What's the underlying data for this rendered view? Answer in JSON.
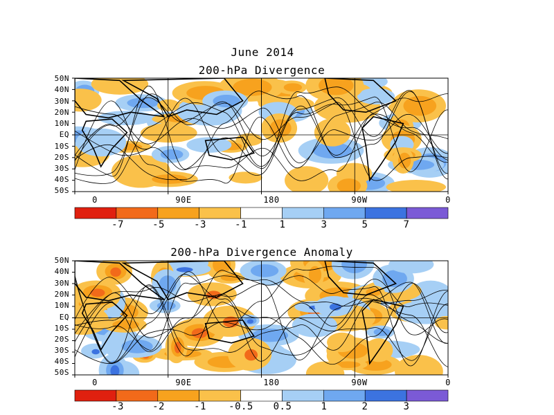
{
  "figure": {
    "title": "June 2014"
  },
  "panels": [
    {
      "title": "200-hPa Divergence",
      "lat_labels": [
        "50N",
        "40N",
        "30N",
        "20N",
        "10N",
        "EQ",
        "10S",
        "20S",
        "30S",
        "40S",
        "50S"
      ],
      "lon_labels": [
        "0",
        "90E",
        "180",
        "90W",
        "0"
      ],
      "colorbar": {
        "labels": [
          "-7",
          "-5",
          "-3",
          "-1",
          "1",
          "3",
          "5",
          "7"
        ],
        "colors": [
          "#e0200f",
          "#f26a1a",
          "#f7a21e",
          "#fac14a",
          "#ffffff",
          "#a6cff5",
          "#6fa8f0",
          "#3c73e0",
          "#7b5ad6"
        ]
      }
    },
    {
      "title": "200-hPa Divergence Anomaly",
      "lat_labels": [
        "50N",
        "40N",
        "30N",
        "20N",
        "10N",
        "EQ",
        "10S",
        "20S",
        "30S",
        "40S",
        "50S"
      ],
      "lon_labels": [
        "0",
        "90E",
        "180",
        "90W",
        "0"
      ],
      "colorbar": {
        "labels": [
          "-3",
          "-2",
          "-1",
          "-0.5",
          "0.5",
          "1",
          "2",
          "3"
        ],
        "colors": [
          "#e0200f",
          "#f26a1a",
          "#f7a21e",
          "#fac14a",
          "#ffffff",
          "#a6cff5",
          "#6fa8f0",
          "#3c73e0",
          "#7b5ad6"
        ]
      }
    }
  ]
}
